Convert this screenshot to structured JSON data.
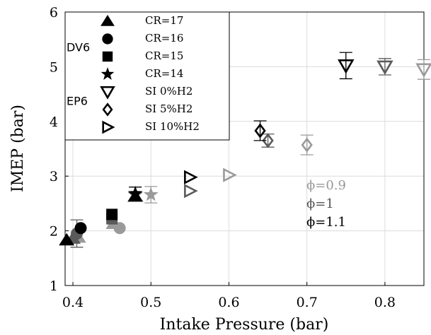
{
  "chart_data": {
    "type": "scatter",
    "xlabel": "Intake Pressure (bar)",
    "ylabel": "IMEP (bar)",
    "xlim": [
      0.39,
      0.85
    ],
    "ylim": [
      1,
      6
    ],
    "xticks": [
      "0.4",
      "0.5",
      "0.6",
      "0.7",
      "0.8"
    ],
    "yticks": [
      "1",
      "2",
      "3",
      "4",
      "5",
      "6"
    ],
    "grid": true,
    "legend_placement": "top-left",
    "legend": {
      "group_labels": [
        "DV6",
        "EP6"
      ],
      "entries": [
        {
          "label": "CR=17",
          "marker": "triangle-up-filled"
        },
        {
          "label": "CR=16",
          "marker": "circle-filled"
        },
        {
          "label": "CR=15",
          "marker": "square-filled"
        },
        {
          "label": "CR=14",
          "marker": "star-filled"
        },
        {
          "label": "SI 0%H2",
          "marker": "triangle-down-open"
        },
        {
          "label": "SI 5%H2",
          "marker": "diamond-open"
        },
        {
          "label": "SI 10%H2",
          "marker": "triangle-right-open"
        }
      ]
    },
    "annotations": [
      {
        "text": "ϕ=0.9",
        "color": "#999999"
      },
      {
        "text": "ϕ=1",
        "color": "#555555"
      },
      {
        "text": "ϕ=1.1",
        "color": "#000000"
      }
    ],
    "colors": {
      "phi_0_9": "#9a9a9a",
      "phi_1": "#5a5a5a",
      "phi_1_1": "#000000"
    },
    "series": [
      {
        "name": "CR=17",
        "marker": "triangle-up-filled",
        "points": [
          {
            "x": 0.392,
            "y": 1.83,
            "phi": "1.1"
          },
          {
            "x": 0.4,
            "y": 1.86,
            "phi": "1"
          },
          {
            "x": 0.407,
            "y": 1.88,
            "phi": "0.9"
          },
          {
            "x": 0.452,
            "y": 2.13,
            "phi": "0.9"
          },
          {
            "x": 0.48,
            "y": 2.63,
            "phi": "1.1"
          }
        ]
      },
      {
        "name": "CR=16",
        "marker": "circle-filled",
        "points": [
          {
            "x": 0.41,
            "y": 2.05,
            "phi": "1.1"
          },
          {
            "x": 0.405,
            "y": 1.95,
            "phi": "1",
            "err": 0.25
          },
          {
            "x": 0.46,
            "y": 2.05,
            "phi": "0.9"
          }
        ]
      },
      {
        "name": "CR=15",
        "marker": "square-filled",
        "points": [
          {
            "x": 0.45,
            "y": 2.3,
            "phi": "1.1"
          },
          {
            "x": 0.45,
            "y": 2.22,
            "phi": "1"
          }
        ]
      },
      {
        "name": "CR=14",
        "marker": "star-filled",
        "points": [
          {
            "x": 0.48,
            "y": 2.68,
            "phi": "1.1",
            "err": 0.12
          },
          {
            "x": 0.48,
            "y": 2.66,
            "phi": "1"
          },
          {
            "x": 0.5,
            "y": 2.66,
            "phi": "0.9",
            "err": 0.15
          }
        ]
      },
      {
        "name": "SI 0%H2",
        "marker": "triangle-down-open",
        "points": [
          {
            "x": 0.75,
            "y": 5.02,
            "phi": "1.1",
            "err": 0.24
          },
          {
            "x": 0.8,
            "y": 5.0,
            "phi": "1",
            "err": 0.15
          },
          {
            "x": 0.85,
            "y": 4.95,
            "phi": "0.9",
            "err": 0.18
          }
        ]
      },
      {
        "name": "SI 5%H2",
        "marker": "diamond-open",
        "points": [
          {
            "x": 0.64,
            "y": 3.83,
            "phi": "1.1",
            "err": 0.18
          },
          {
            "x": 0.65,
            "y": 3.65,
            "phi": "1",
            "err": 0.12
          },
          {
            "x": 0.7,
            "y": 3.57,
            "phi": "0.9",
            "err": 0.18
          }
        ]
      },
      {
        "name": "SI 10%H2",
        "marker": "triangle-right-open",
        "points": [
          {
            "x": 0.55,
            "y": 2.98,
            "phi": "1.1"
          },
          {
            "x": 0.55,
            "y": 2.73,
            "phi": "1"
          },
          {
            "x": 0.6,
            "y": 3.02,
            "phi": "0.9"
          }
        ]
      }
    ]
  }
}
